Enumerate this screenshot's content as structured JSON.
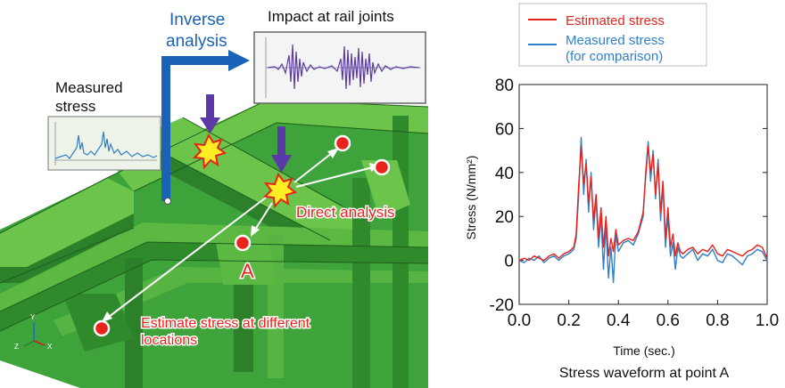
{
  "diagram": {
    "inverse_line1": "Inverse",
    "inverse_line2": "analysis",
    "impact_label": "Impact at rail joints",
    "measured_line1": "Measured",
    "measured_line2": "stress",
    "direct_label": "Direct analysis",
    "point_label": "A",
    "estimate_line1": "Estimate stress at different",
    "estimate_line2": "locations",
    "axis_y": "Y",
    "axis_z": "Z",
    "axis_x": "X",
    "colors": {
      "structure": "#3ea33a",
      "structure_light": "#6cc44a",
      "structure_dark": "#236f22",
      "inverse_arrow": "#1a62b8",
      "impact_arrow": "#5b3aa8",
      "marker": "#e8231c",
      "direct_text": "#e8231c"
    }
  },
  "chart_data": {
    "type": "line",
    "title": "Stress waveform at point A",
    "xlabel": "Time (sec.)",
    "ylabel": "Stress (N/mm²)",
    "xlim": [
      0.0,
      1.0
    ],
    "ylim": [
      -20,
      80
    ],
    "xticks": [
      "0.0",
      "0.2",
      "0.4",
      "0.6",
      "0.8",
      "1.0"
    ],
    "yticks": [
      "-20",
      "0",
      "20",
      "40",
      "60",
      "80"
    ],
    "legend_position": "top-left, outside",
    "series": [
      {
        "name": "Estimated stress",
        "color": "#e8231c",
        "x": [
          0.0,
          0.02,
          0.04,
          0.06,
          0.08,
          0.1,
          0.12,
          0.14,
          0.16,
          0.18,
          0.2,
          0.22,
          0.23,
          0.24,
          0.25,
          0.26,
          0.27,
          0.28,
          0.29,
          0.3,
          0.31,
          0.32,
          0.33,
          0.34,
          0.35,
          0.36,
          0.37,
          0.38,
          0.39,
          0.4,
          0.42,
          0.44,
          0.46,
          0.48,
          0.5,
          0.51,
          0.52,
          0.53,
          0.54,
          0.55,
          0.56,
          0.57,
          0.58,
          0.59,
          0.6,
          0.61,
          0.62,
          0.63,
          0.64,
          0.65,
          0.66,
          0.68,
          0.7,
          0.72,
          0.74,
          0.76,
          0.78,
          0.8,
          0.82,
          0.84,
          0.86,
          0.88,
          0.9,
          0.92,
          0.94,
          0.96,
          0.98,
          1.0
        ],
        "y": [
          0,
          1,
          0,
          2,
          1,
          0,
          2,
          3,
          1,
          3,
          4,
          6,
          12,
          34,
          52,
          35,
          44,
          26,
          38,
          18,
          30,
          10,
          24,
          6,
          20,
          2,
          10,
          4,
          14,
          7,
          9,
          10,
          9,
          13,
          22,
          38,
          52,
          40,
          48,
          30,
          44,
          22,
          36,
          10,
          24,
          6,
          12,
          2,
          8,
          4,
          3,
          5,
          6,
          3,
          5,
          4,
          7,
          3,
          2,
          5,
          4,
          3,
          2,
          4,
          5,
          7,
          6,
          1
        ]
      },
      {
        "name": "Measured stress\n(for comparison)",
        "color": "#2f7fc9",
        "x": [
          0.0,
          0.02,
          0.04,
          0.06,
          0.08,
          0.1,
          0.12,
          0.14,
          0.16,
          0.18,
          0.2,
          0.22,
          0.23,
          0.24,
          0.25,
          0.26,
          0.27,
          0.28,
          0.29,
          0.3,
          0.31,
          0.32,
          0.33,
          0.34,
          0.35,
          0.36,
          0.37,
          0.38,
          0.39,
          0.4,
          0.42,
          0.44,
          0.46,
          0.48,
          0.5,
          0.51,
          0.52,
          0.53,
          0.54,
          0.55,
          0.56,
          0.57,
          0.58,
          0.59,
          0.6,
          0.61,
          0.62,
          0.63,
          0.64,
          0.65,
          0.66,
          0.68,
          0.7,
          0.72,
          0.74,
          0.76,
          0.78,
          0.8,
          0.82,
          0.84,
          0.86,
          0.88,
          0.9,
          0.92,
          0.94,
          0.96,
          0.98,
          1.0
        ],
        "y": [
          0,
          -1,
          1,
          0,
          2,
          -1,
          1,
          2,
          0,
          2,
          3,
          5,
          10,
          30,
          56,
          30,
          46,
          22,
          40,
          14,
          28,
          6,
          20,
          -4,
          16,
          -8,
          6,
          -10,
          12,
          4,
          8,
          9,
          7,
          12,
          20,
          40,
          54,
          36,
          50,
          28,
          46,
          18,
          34,
          6,
          20,
          2,
          8,
          -4,
          6,
          2,
          1,
          3,
          5,
          0,
          3,
          2,
          5,
          0,
          -1,
          3,
          2,
          0,
          -2,
          2,
          3,
          5,
          4,
          0
        ]
      }
    ]
  }
}
